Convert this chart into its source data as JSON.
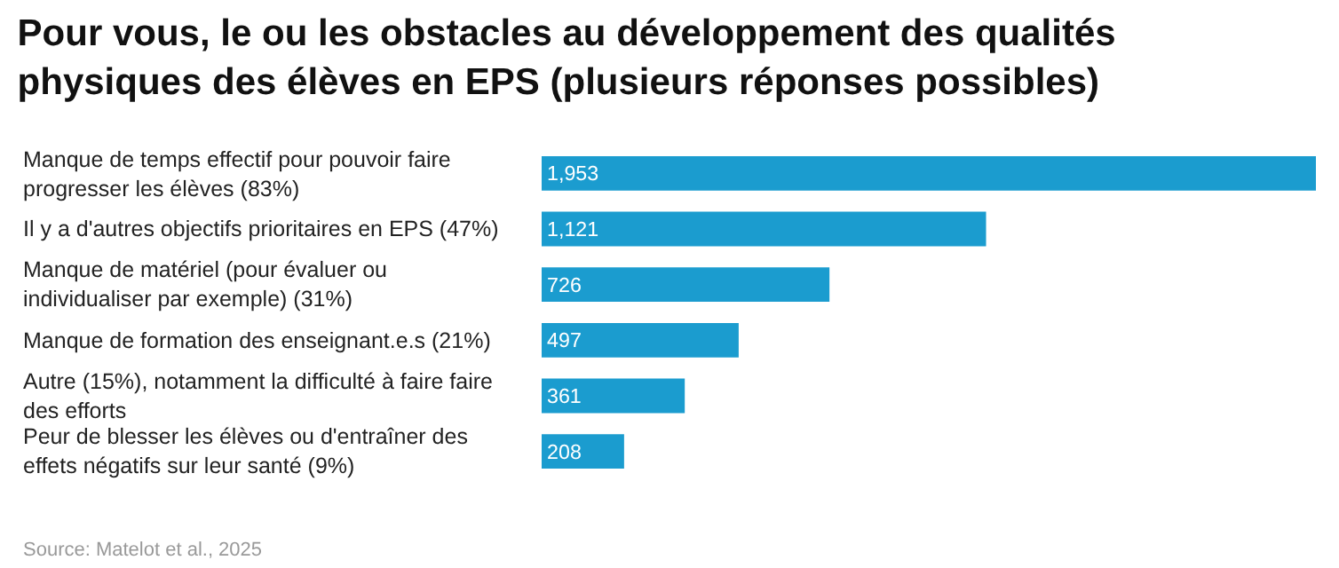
{
  "chart_data": {
    "type": "bar",
    "orientation": "horizontal",
    "title": "Pour vous, le ou les obstacles au développement des qualités\nphysiques des élèves en EPS (plusieurs réponses possibles)",
    "categories": [
      "Manque de temps effectif pour pouvoir faire\nprogresser les élèves (83%)",
      "Il y a d'autres objectifs prioritaires en EPS (47%)",
      "Manque de matériel (pour évaluer ou\nindividualiser par exemple) (31%)",
      "Manque de formation des enseignant.e.s (21%)",
      "Autre (15%), notamment la difficulté à faire faire\ndes efforts",
      "Peur de blesser les élèves ou d'entraîner des\neffets négatifs sur leur santé (9%)"
    ],
    "values": [
      1953,
      1121,
      726,
      497,
      361,
      208
    ],
    "value_labels": [
      "1,953",
      "1,121",
      "726",
      "497",
      "361",
      "208"
    ],
    "color": "#1b9ccf",
    "annotations": [
      "Source: Matelot et al., 2025"
    ]
  }
}
